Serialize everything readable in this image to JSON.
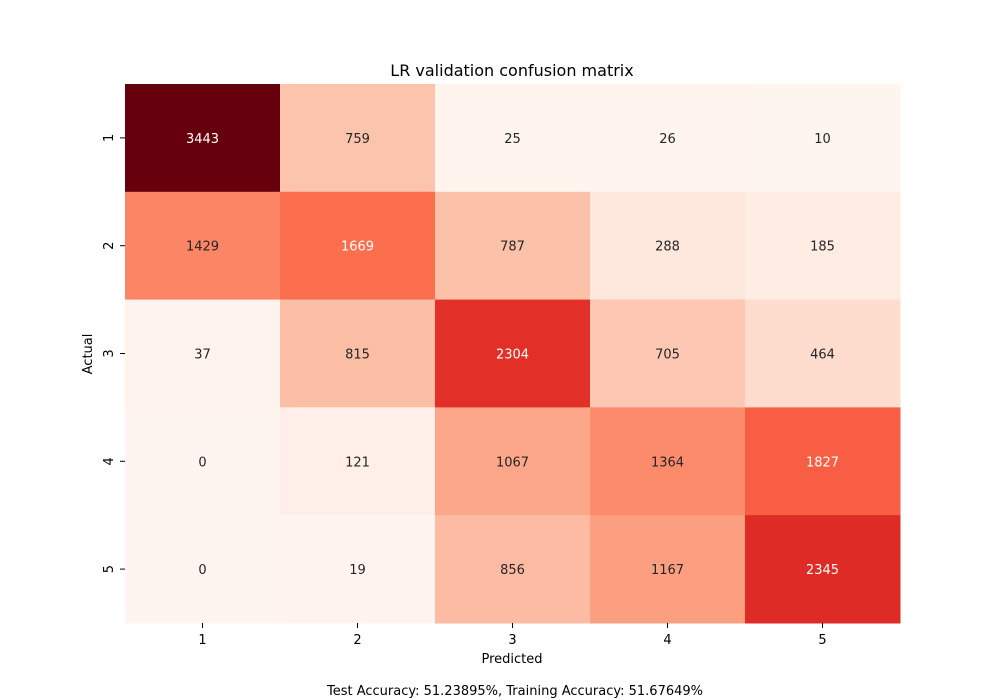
{
  "chart_data": {
    "type": "heatmap",
    "title": "LR validation confusion matrix",
    "xlabel": "Predicted",
    "ylabel": "Actual",
    "x_categories": [
      "1",
      "2",
      "3",
      "4",
      "5"
    ],
    "y_categories": [
      "1",
      "2",
      "3",
      "4",
      "5"
    ],
    "values": [
      [
        3443,
        759,
        25,
        26,
        10
      ],
      [
        1429,
        1669,
        787,
        288,
        185
      ],
      [
        37,
        815,
        2304,
        705,
        464
      ],
      [
        0,
        121,
        1067,
        1364,
        1827
      ],
      [
        0,
        19,
        856,
        1167,
        2345
      ]
    ],
    "colormap": "Reds",
    "colorbar": false,
    "annotations": true
  },
  "footer": {
    "text": "Test Accuracy: 51.23895%, Training Accuracy: 51.67649%"
  }
}
